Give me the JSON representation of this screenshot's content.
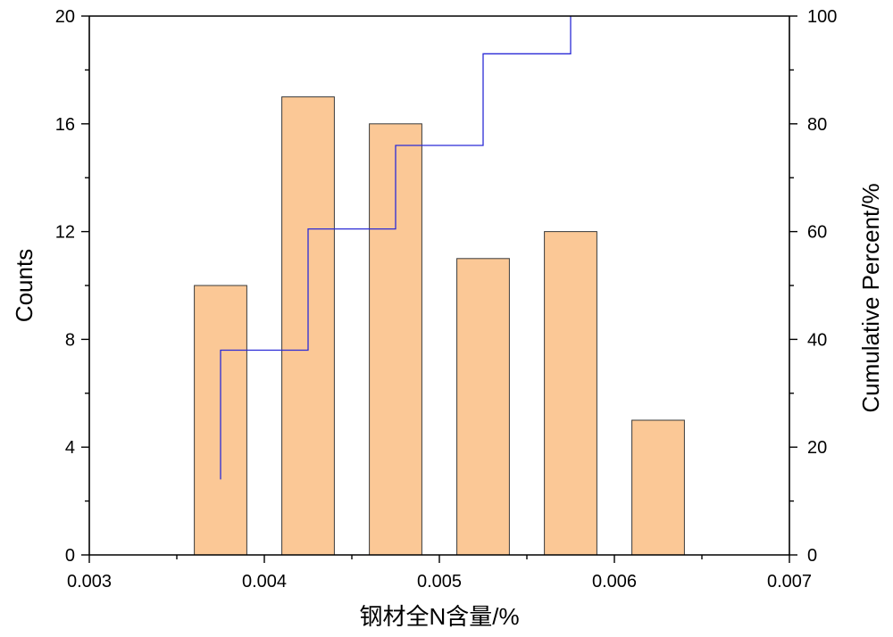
{
  "chart_data": {
    "type": "bar",
    "subtype": "histogram with cumulative step line",
    "xlabel": "钢材全N含量/%",
    "ylabel": "Counts",
    "y2label": "Cumulative Percent/%",
    "xlim": [
      0.003,
      0.007
    ],
    "ylim": [
      0,
      20
    ],
    "y2lim": [
      0,
      100
    ],
    "x_ticks": [
      "0.003",
      "0.004",
      "0.005",
      "0.006",
      "0.007"
    ],
    "y_ticks": [
      "0",
      "4",
      "8",
      "12",
      "16",
      "20"
    ],
    "y2_ticks": [
      "0",
      "20",
      "40",
      "60",
      "80",
      "100"
    ],
    "grid": false,
    "bins": [
      {
        "x0": 0.0036,
        "x1": 0.0039,
        "count": 10
      },
      {
        "x0": 0.0041,
        "x1": 0.0044,
        "count": 17
      },
      {
        "x0": 0.0046,
        "x1": 0.0049,
        "count": 16
      },
      {
        "x0": 0.0051,
        "x1": 0.0054,
        "count": 11
      },
      {
        "x0": 0.0056,
        "x1": 0.0059,
        "count": 12
      },
      {
        "x0": 0.0061,
        "x1": 0.0064,
        "count": 5
      }
    ],
    "cumulative": {
      "x": [
        0.00375,
        0.00375,
        0.00425,
        0.00425,
        0.00475,
        0.00475,
        0.00525,
        0.00525,
        0.00575,
        0.00575
      ],
      "y": [
        14,
        38,
        38,
        60.5,
        60.5,
        76,
        76,
        93,
        93,
        100
      ]
    },
    "colors": {
      "bar_fill": "#FBC896",
      "bar_stroke": "#3a3a3a",
      "line": "#2B2BD6",
      "axis": "#000000"
    }
  }
}
